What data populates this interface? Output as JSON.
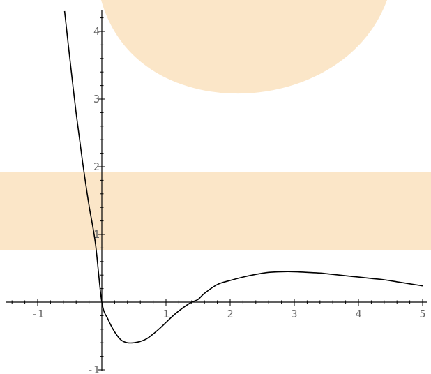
{
  "chart_data": {
    "type": "line",
    "title": "",
    "xlabel": "",
    "ylabel": "",
    "xlim": [
      -1.5,
      5.1
    ],
    "ylim": [
      -1.1,
      4.3
    ],
    "grid": false,
    "x_ticks": [
      {
        "value": -1,
        "label": "-1"
      },
      {
        "value": 1,
        "label": "1"
      },
      {
        "value": 2,
        "label": "2"
      },
      {
        "value": 3,
        "label": "3"
      },
      {
        "value": 4,
        "label": "4"
      },
      {
        "value": 5,
        "label": "5"
      }
    ],
    "y_ticks": [
      {
        "value": -1,
        "label": "-1"
      },
      {
        "value": 1,
        "label": "1"
      },
      {
        "value": 2,
        "label": "2"
      },
      {
        "value": 3,
        "label": "3"
      },
      {
        "value": 4,
        "label": "4"
      }
    ],
    "series": [
      {
        "x": [
          -0.58,
          -0.5,
          -0.4,
          -0.3,
          -0.2,
          -0.1,
          0,
          0.1,
          0.2,
          0.3,
          0.4,
          0.5,
          0.6,
          0.7,
          0.8,
          0.9,
          1.0,
          1.1,
          1.2,
          1.3,
          1.4,
          1.5,
          1.6,
          1.8,
          2.0,
          2.2,
          2.4,
          2.6,
          2.8,
          3.0,
          3.2,
          3.4,
          3.6,
          3.8,
          4.0,
          4.2,
          4.4,
          4.6,
          4.8,
          5.0
        ],
        "y": [
          4.3,
          3.61,
          2.79,
          2.07,
          1.43,
          0.87,
          0.0,
          -0.26,
          -0.44,
          -0.56,
          -0.6,
          -0.6,
          -0.58,
          -0.54,
          -0.47,
          -0.39,
          -0.3,
          -0.21,
          -0.13,
          -0.06,
          0.0,
          0.04,
          0.13,
          0.26,
          0.32,
          0.37,
          0.41,
          0.44,
          0.45,
          0.45,
          0.44,
          0.43,
          0.41,
          0.39,
          0.37,
          0.35,
          0.33,
          0.3,
          0.27,
          0.24
        ]
      }
    ],
    "colors": {
      "line": "#000000",
      "axis": "#000000",
      "tick_label": "#666666",
      "watermark": "#fbe6c8"
    }
  }
}
